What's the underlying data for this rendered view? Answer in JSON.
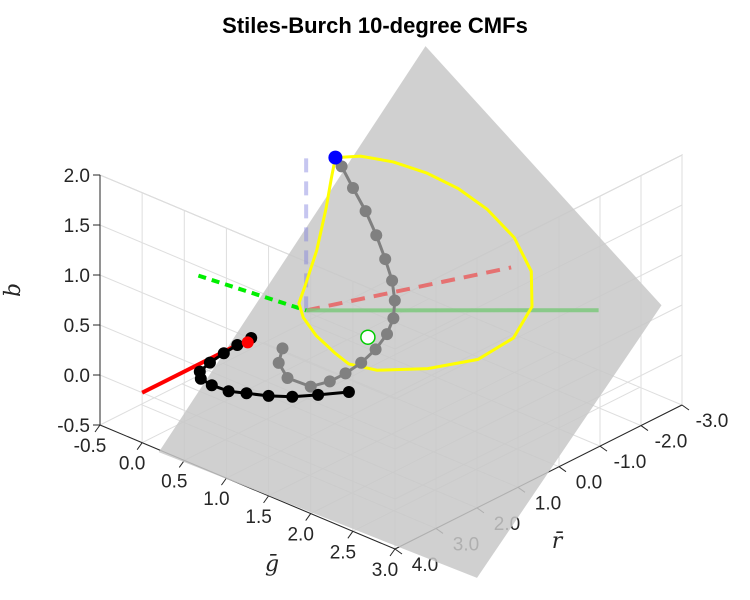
{
  "chart_data": {
    "type": "line",
    "title": "Stiles-Burch 10-degree CMFs",
    "xlabel": "ḡ",
    "ylabel": "r̄",
    "zlabel": "b̄",
    "projection": "3d",
    "grid": true,
    "xlim": [
      -0.5,
      3.0
    ],
    "ylim": [
      -3.0,
      4.0
    ],
    "zlim": [
      -0.5,
      2.0
    ],
    "xticks": [
      "-0.5",
      "0.0",
      "0.5",
      "1.0",
      "1.5",
      "2.0",
      "2.5",
      "3.0"
    ],
    "yticks": [
      "-3.0",
      "-2.0",
      "-1.0",
      "0.0",
      "1.0",
      "2.0",
      "3.0",
      "4.0"
    ],
    "zticks": [
      "-0.5",
      "0.0",
      "0.5",
      "1.0",
      "1.5",
      "2.0"
    ],
    "colors": {
      "plane": "#c8c8c8",
      "gamut_curve": "#ffff00",
      "spectrum_upper": "#808080",
      "spectrum_lower": "#000000",
      "r_axis": "#ff0000",
      "g_axis": "#00ee00",
      "b_axis": "#8080dd",
      "primary_r": "#ff0000",
      "primary_g": "#00cc00",
      "primary_b": "#0000ff"
    },
    "series": [
      {
        "kind": "spectral-locus-upper",
        "points": [
          [
            0.23,
            -0.24,
            1.56
          ],
          [
            0.28,
            -0.29,
            1.48
          ],
          [
            0.4,
            -0.32,
            1.3
          ],
          [
            0.56,
            -0.3,
            1.13
          ],
          [
            0.72,
            -0.23,
            0.96
          ],
          [
            0.88,
            -0.12,
            0.8
          ],
          [
            1.02,
            0.0,
            0.66
          ],
          [
            1.14,
            0.18,
            0.54
          ],
          [
            1.23,
            0.4,
            0.44
          ],
          [
            1.29,
            0.68,
            0.36
          ],
          [
            1.31,
            1.0,
            0.28
          ],
          [
            1.3,
            1.33,
            0.21
          ],
          [
            1.27,
            1.65,
            0.16
          ],
          [
            1.22,
            1.93,
            0.12
          ],
          [
            1.1,
            2.15,
            0.07
          ],
          [
            0.8,
            2.1,
            0.04
          ],
          [
            0.55,
            1.8,
            0.04
          ],
          [
            0.4,
            1.4,
            0.05
          ]
        ]
      },
      {
        "kind": "spectral-locus-lower",
        "points": [
          [
            1.3,
            1.63,
            -0.02
          ],
          [
            1.1,
            1.97,
            -0.05
          ],
          [
            0.93,
            2.25,
            -0.07
          ],
          [
            0.78,
            2.52,
            -0.06
          ],
          [
            0.63,
            2.75,
            -0.04
          ],
          [
            0.5,
            2.92,
            -0.03
          ],
          [
            0.34,
            3.0,
            -0.01
          ],
          [
            0.2,
            2.98,
            0.0
          ],
          [
            0.1,
            2.8,
            0.0
          ],
          [
            0.05,
            2.45,
            0.0
          ],
          [
            0.02,
            2.05,
            0.0
          ],
          [
            0.0,
            1.68,
            0.0
          ],
          [
            0.0,
            1.34,
            0.0
          ]
        ]
      },
      {
        "kind": "projected-loop",
        "points": [
          [
            0.23,
            -0.24,
            1.56
          ],
          [
            0.45,
            -0.4,
            1.62
          ],
          [
            0.8,
            -0.48,
            1.67
          ],
          [
            1.2,
            -0.48,
            1.7
          ],
          [
            1.6,
            -0.42,
            1.7
          ],
          [
            2.0,
            -0.3,
            1.66
          ],
          [
            2.4,
            -0.14,
            1.55
          ],
          [
            2.7,
            0.06,
            1.36
          ],
          [
            2.85,
            0.35,
            1.12
          ],
          [
            2.8,
            0.7,
            0.86
          ],
          [
            2.55,
            1.05,
            0.63
          ],
          [
            2.1,
            1.35,
            0.44
          ],
          [
            1.6,
            1.56,
            0.29
          ],
          [
            1.3,
            1.63,
            0.26
          ],
          [
            1.1,
            1.55,
            0.28
          ],
          [
            0.8,
            1.4,
            0.32
          ],
          [
            0.55,
            1.2,
            0.37
          ],
          [
            0.4,
            1.0,
            0.42
          ],
          [
            0.34,
            0.72,
            0.52
          ],
          [
            0.3,
            0.36,
            0.78
          ],
          [
            0.26,
            0.05,
            1.12
          ],
          [
            0.24,
            -0.12,
            1.38
          ],
          [
            0.23,
            -0.24,
            1.56
          ]
        ]
      }
    ],
    "primaries": [
      {
        "name": "R",
        "point": [
          0,
          1,
          0
        ]
      },
      {
        "name": "G",
        "point": [
          1,
          0,
          0
        ]
      },
      {
        "name": "B",
        "point": [
          0,
          0,
          1.5
        ]
      }
    ]
  }
}
